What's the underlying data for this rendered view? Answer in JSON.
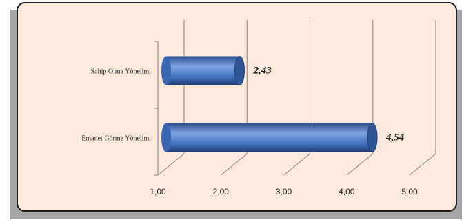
{
  "chart_data": {
    "type": "bar",
    "orientation": "horizontal",
    "style": "3d-cylinder",
    "categories": [
      "Sahip Olma Yönelimi",
      "Emanet Görme Yönelimi"
    ],
    "values": [
      2.43,
      4.54
    ],
    "data_labels": [
      "2,43",
      "4,54"
    ],
    "xlim": [
      1.0,
      5.0
    ],
    "x_ticks": [
      1,
      2,
      3,
      4,
      5
    ],
    "x_tick_labels": [
      "1,00",
      "2,00",
      "3,00",
      "4,00",
      "5,00"
    ],
    "grid": true,
    "legend": "none",
    "title": "",
    "xlabel": "",
    "ylabel": ""
  },
  "colors": {
    "panel_background": "#fdeadc",
    "bar": "#4472c4",
    "bar_dark": "#2a4e8f",
    "bar_light": "#7fa3e0",
    "grid": "#808080"
  }
}
